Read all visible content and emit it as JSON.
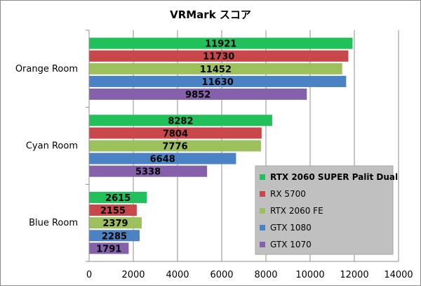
{
  "chart_data": {
    "type": "bar",
    "orientation": "horizontal",
    "title": "VRMark スコア",
    "xlabel": "",
    "ylabel": "",
    "xlim": [
      0,
      14000
    ],
    "xticks": [
      0,
      2000,
      4000,
      6000,
      8000,
      10000,
      12000,
      14000
    ],
    "grid": true,
    "legend_position": "bottom-right",
    "categories": [
      "Orange Room",
      "Cyan Room",
      "Blue Room"
    ],
    "series": [
      {
        "name": "RTX 2060 SUPER Palit Dual",
        "color": "#22c05a",
        "values": [
          11921,
          8282,
          2615
        ],
        "bold_legend": true
      },
      {
        "name": "RX 5700",
        "color": "#c9474a",
        "values": [
          11730,
          7804,
          2155
        ]
      },
      {
        "name": "RTX 2060 FE",
        "color": "#9bc05c",
        "values": [
          11452,
          7776,
          2379
        ]
      },
      {
        "name": "GTX 1080",
        "color": "#4a82c4",
        "values": [
          11630,
          6648,
          2285
        ]
      },
      {
        "name": "GTX 1070",
        "color": "#8560ab",
        "values": [
          9852,
          5338,
          1791
        ]
      }
    ]
  }
}
